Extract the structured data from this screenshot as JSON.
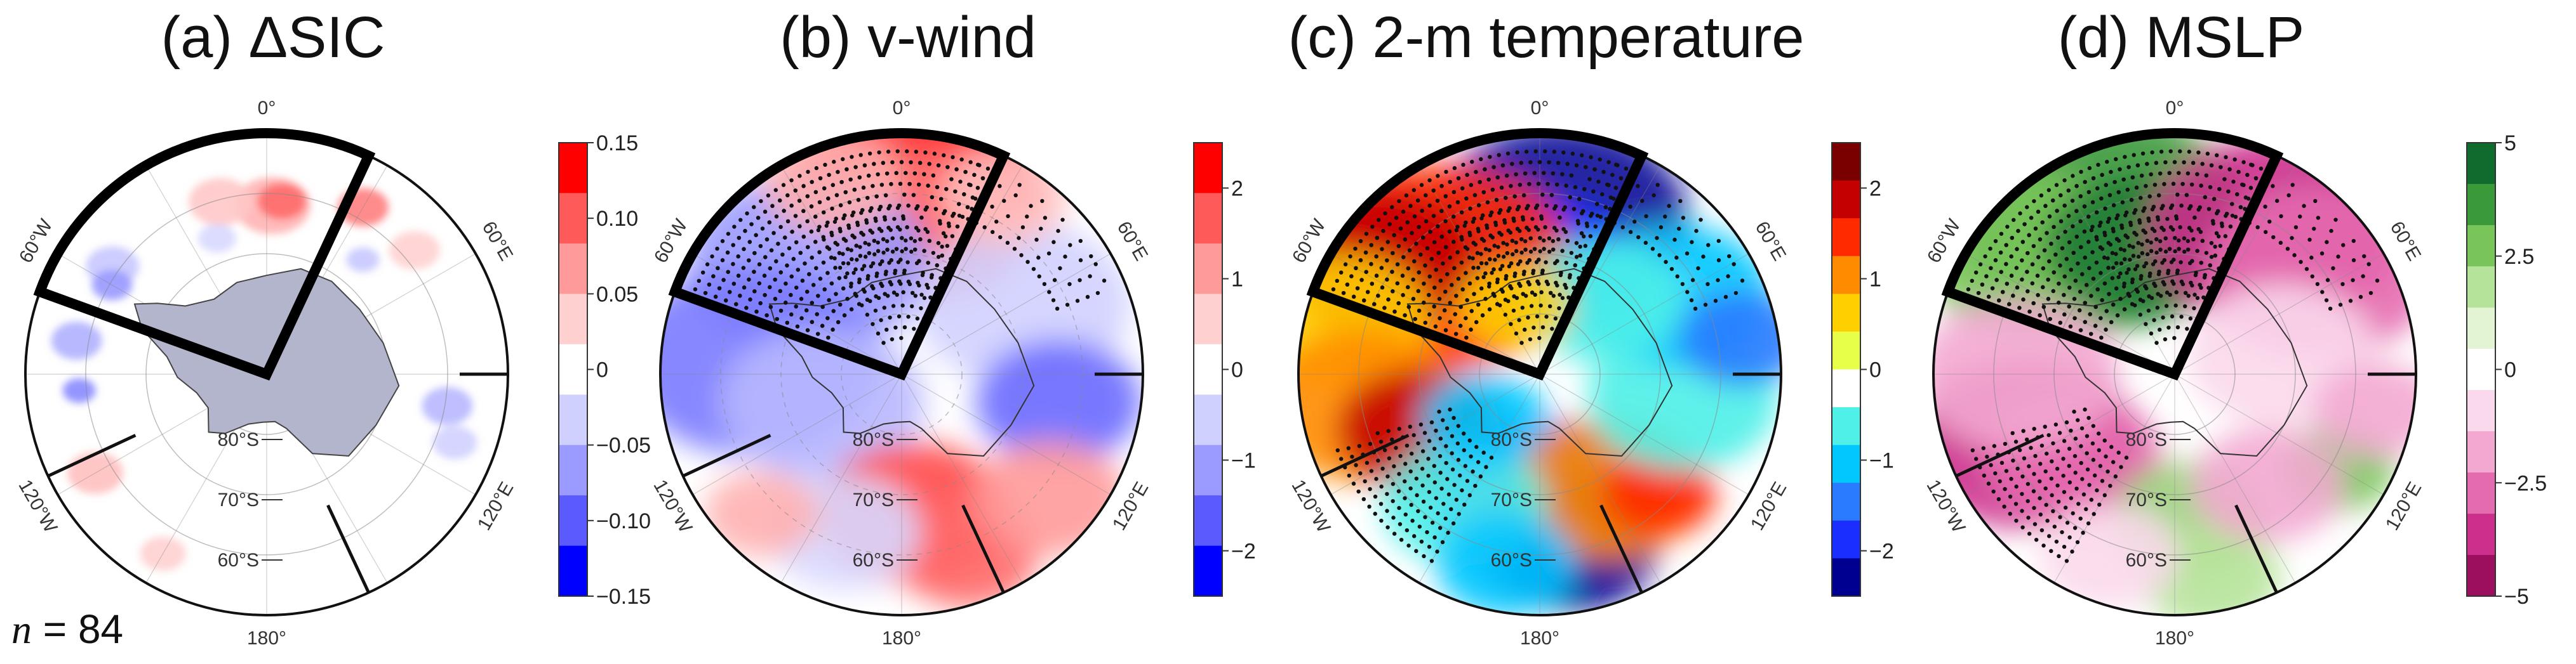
{
  "footer": {
    "n_label": "n",
    "n_eq": " = ",
    "n_value": "84"
  },
  "chart_data": [
    {
      "type": "heatmap",
      "projection": "south-polar-stereographic",
      "title": "(a) ΔSIC",
      "variable": "sea ice concentration anomaly",
      "colorbar": {
        "ticks": [
          "0.15",
          "0.10",
          "0.05",
          "0",
          "−0.05",
          "−0.10",
          "−0.15"
        ],
        "range": [
          -0.15,
          0.15
        ],
        "colors": [
          "#ff0000",
          "#ff5a5a",
          "#ff9a9a",
          "#ffd0d0",
          "#ffffff",
          "#d0d0ff",
          "#9a9aff",
          "#5a5aff",
          "#0000ff"
        ]
      },
      "longitude_labels": [
        "0°",
        "60°E",
        "120°E",
        "180°",
        "120°W",
        "60°W"
      ],
      "latitude_labels": [
        "80°S",
        "70°S",
        "60°S"
      ],
      "highlight_sector": [
        "70°W",
        "25°E"
      ],
      "sector_lines": [
        "90°E",
        "150°E",
        "115°W"
      ],
      "land_color": "#b3b5cc"
    },
    {
      "type": "heatmap",
      "projection": "south-polar-stereographic",
      "title": "(b) v-wind",
      "variable": "meridional wind anomaly",
      "colorbar": {
        "ticks": [
          "2",
          "1",
          "0",
          "−1",
          "−2"
        ],
        "range": [
          -2.5,
          2.5
        ],
        "colors": [
          "#ff0000",
          "#ff5a5a",
          "#ff9a9a",
          "#ffd0d0",
          "#ffffff",
          "#d0d0ff",
          "#9a9aff",
          "#5a5aff",
          "#0000ff"
        ]
      },
      "longitude_labels": [
        "0°",
        "60°E",
        "120°E",
        "180°",
        "120°W",
        "60°W"
      ],
      "latitude_labels": [
        "80°S",
        "70°S",
        "60°S"
      ],
      "highlight_sector": [
        "70°W",
        "25°E"
      ],
      "sector_lines": [
        "90°E",
        "150°E",
        "115°W"
      ]
    },
    {
      "type": "heatmap",
      "projection": "south-polar-stereographic",
      "title": "(c) 2-m temperature",
      "variable": "2-m air temperature anomaly",
      "colorbar": {
        "ticks": [
          "2",
          "1",
          "0",
          "−1",
          "−2"
        ],
        "range": [
          -2.5,
          2.5
        ],
        "colors": [
          "#7a0000",
          "#c40000",
          "#ff2a00",
          "#ff8c00",
          "#ffd000",
          "#e8ff4a",
          "#ffffff",
          "#4ef0e8",
          "#00c8ff",
          "#2a7bff",
          "#1a2fff",
          "#000090"
        ]
      },
      "longitude_labels": [
        "0°",
        "60°E",
        "120°E",
        "180°",
        "120°W",
        "60°W"
      ],
      "latitude_labels": [
        "80°S",
        "70°S",
        "60°S"
      ],
      "highlight_sector": [
        "70°W",
        "25°E"
      ],
      "sector_lines": [
        "90°E",
        "150°E",
        "115°W"
      ]
    },
    {
      "type": "heatmap",
      "projection": "south-polar-stereographic",
      "title": "(d) MSLP",
      "variable": "mean sea-level pressure anomaly",
      "colorbar": {
        "ticks": [
          "5",
          "2.5",
          "0",
          "−2.5",
          "−5"
        ],
        "range": [
          -5,
          5
        ],
        "colors": [
          "#0f6b2e",
          "#3a9a3a",
          "#7ac55a",
          "#b6e39a",
          "#e2f4d4",
          "#ffffff",
          "#fbd9ec",
          "#f3a8d2",
          "#e56bb0",
          "#cc2f8c",
          "#9c0f5f"
        ]
      },
      "longitude_labels": [
        "0°",
        "60°E",
        "120°E",
        "180°",
        "120°W",
        "60°W"
      ],
      "latitude_labels": [
        "80°S",
        "70°S",
        "60°S"
      ],
      "highlight_sector": [
        "70°W",
        "25°E"
      ],
      "sector_lines": [
        "90°E",
        "150°E",
        "115°W"
      ]
    }
  ]
}
